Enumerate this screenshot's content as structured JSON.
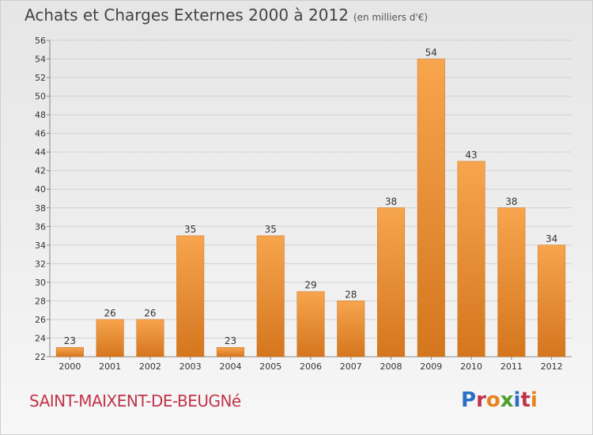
{
  "title": "Achats et Charges Externes 2000 à 2012",
  "subtitle": "(en milliers d'€)",
  "commune": "SAINT-MAIXENT-DE-BEUGNé",
  "logo": {
    "text": "Proxiti",
    "colors": [
      "#2b6fc2",
      "#c0344a",
      "#e8821e",
      "#4aa02c",
      "#2b6fc2",
      "#c0344a",
      "#e8821e"
    ]
  },
  "chart_data": {
    "type": "bar",
    "categories": [
      "2000",
      "2001",
      "2002",
      "2003",
      "2004",
      "2005",
      "2006",
      "2007",
      "2008",
      "2009",
      "2010",
      "2011",
      "2012"
    ],
    "values": [
      23,
      26,
      26,
      35,
      23,
      35,
      29,
      28,
      38,
      54,
      43,
      38,
      34
    ],
    "ylim": [
      22,
      56
    ],
    "yticks": [
      22,
      24,
      26,
      28,
      30,
      32,
      34,
      36,
      38,
      40,
      42,
      44,
      46,
      48,
      50,
      52,
      54,
      56
    ],
    "grid": true,
    "bar_color_top": "#f7a54e",
    "bar_color_bottom": "#d4761e"
  }
}
